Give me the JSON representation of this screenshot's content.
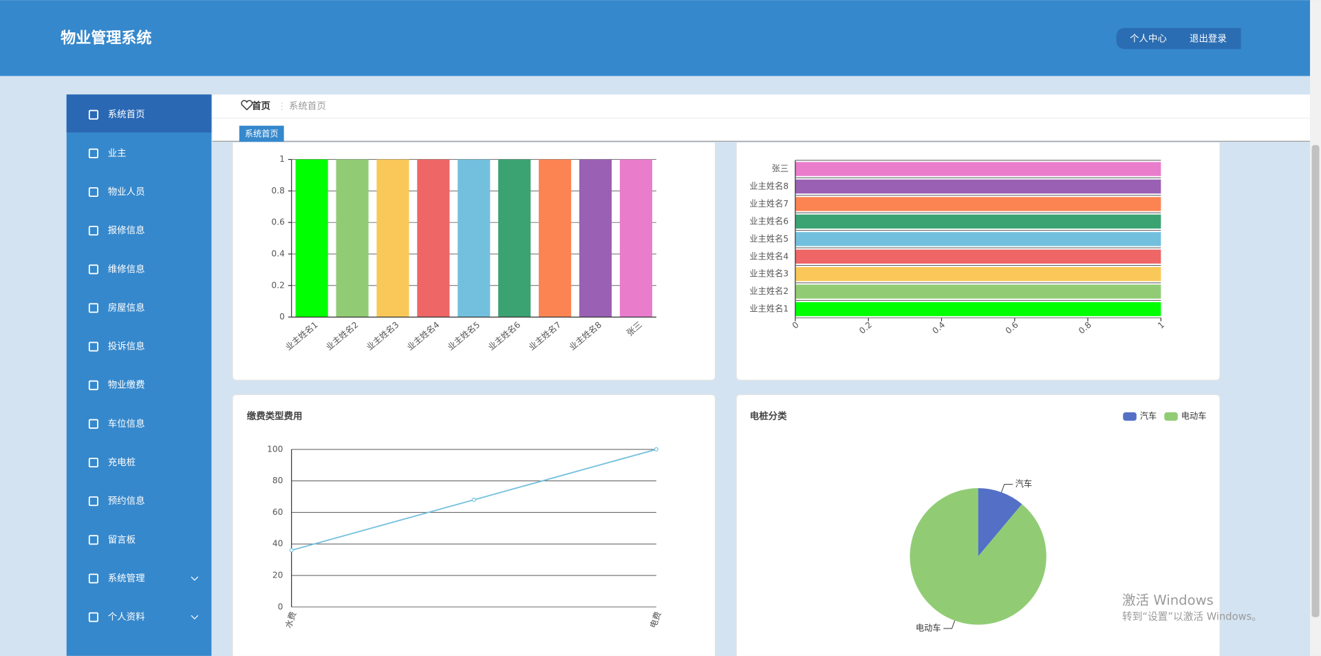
{
  "header": {
    "title": "物业管理系统",
    "links": [
      "个人中心",
      "退出登录"
    ]
  },
  "menu": [
    "系统首页",
    "业主",
    "物业人员",
    "报修信息",
    "维修信息",
    "房屋信息",
    "投诉信息",
    "物业缴费",
    "车位信息",
    "充电桩",
    "预约信息",
    "留言板",
    "系统管理",
    "个人资料"
  ],
  "breadcrumb": [
    "首页",
    "系统首页"
  ],
  "tab": "系统首页",
  "watermark": [
    "激活 Windows",
    "转到“设置”以激活 Windows。"
  ],
  "chart_data": [
    {
      "type": "bar",
      "categories": [
        "业主姓名1",
        "业主姓名2",
        "业主姓名3",
        "业主姓名4",
        "业主姓名5",
        "业主姓名6",
        "业主姓名7",
        "业主姓名8",
        "张三"
      ],
      "values": [
        1,
        1,
        1,
        1,
        1,
        1,
        1,
        1,
        1
      ],
      "colors": [
        "#00ff00",
        "#91cc75",
        "#fac858",
        "#ee6666",
        "#73c0de",
        "#3ba272",
        "#fc8452",
        "#9a60b4",
        "#ea7ccc"
      ],
      "ylim": [
        0,
        1
      ],
      "yticks": [
        0,
        0.2,
        0.4,
        0.6,
        0.8,
        1
      ],
      "grid": true
    },
    {
      "type": "bar",
      "horizontal": true,
      "categories": [
        "业主姓名1",
        "业主姓名2",
        "业主姓名3",
        "业主姓名4",
        "业主姓名5",
        "业主姓名6",
        "业主姓名7",
        "业主姓名8",
        "张三"
      ],
      "values": [
        1,
        1,
        1,
        1,
        1,
        1,
        1,
        1,
        1
      ],
      "colors": [
        "#00ff00",
        "#91cc75",
        "#fac858",
        "#ee6666",
        "#73c0de",
        "#3ba272",
        "#fc8452",
        "#9a60b4",
        "#ea7ccc"
      ],
      "xlim": [
        0,
        1
      ],
      "xticks": [
        0,
        0.2,
        0.4,
        0.6,
        0.8,
        1
      ],
      "grid": true
    },
    {
      "type": "line",
      "title": "缴费类型费用",
      "categories": [
        "水费",
        null,
        "电费"
      ],
      "values": [
        36,
        68,
        100
      ],
      "color": "#73c0de",
      "ylim": [
        0,
        100
      ],
      "yticks": [
        0,
        20,
        40,
        60,
        80,
        100
      ],
      "grid": true
    },
    {
      "type": "pie",
      "title": "电桩分类",
      "categories": [
        "汽车",
        "电动车"
      ],
      "values": [
        1,
        8
      ],
      "colors": [
        "#5470c6",
        "#91cc75"
      ],
      "legend": "top-right"
    }
  ]
}
